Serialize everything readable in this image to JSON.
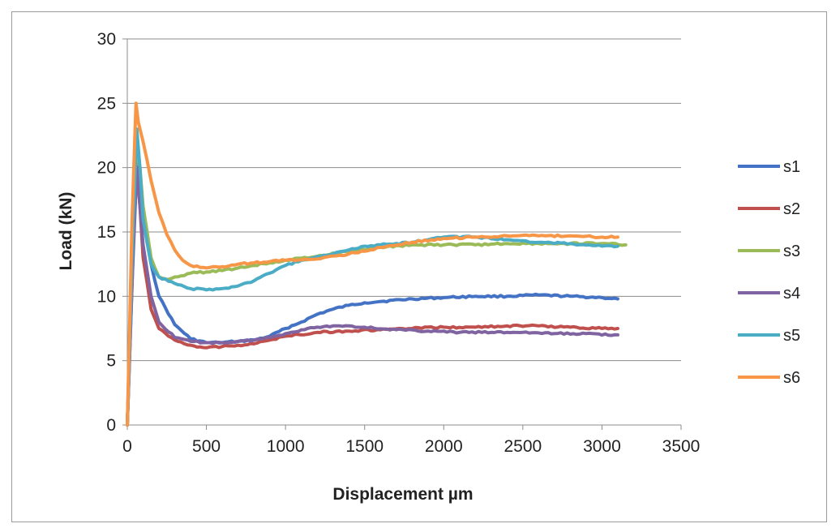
{
  "chart_data": {
    "type": "line",
    "title": "",
    "xlabel": "Displacement µm",
    "ylabel": "Load (kN)",
    "xlim": [
      0,
      3500
    ],
    "ylim": [
      0,
      30
    ],
    "xticks": [
      0,
      500,
      1000,
      1500,
      2000,
      2500,
      3000,
      3500
    ],
    "yticks": [
      0,
      5,
      10,
      15,
      20,
      25,
      30
    ],
    "grid": "horizontal",
    "legend_position": "right",
    "series": [
      {
        "name": "s1",
        "color": "#4472c4",
        "x": [
          0,
          30,
          60,
          80,
          100,
          150,
          200,
          300,
          400,
          500,
          600,
          700,
          800,
          900,
          1000,
          1100,
          1200,
          1300,
          1400,
          1500,
          1600,
          1800,
          2000,
          2200,
          2400,
          2600,
          2800,
          3000,
          3100
        ],
        "y": [
          0,
          12,
          20,
          19,
          16,
          12.5,
          10,
          7.8,
          6.7,
          6.4,
          6.4,
          6.5,
          6.6,
          6.9,
          7.5,
          8.0,
          8.6,
          9.0,
          9.3,
          9.5,
          9.6,
          9.8,
          9.9,
          10.0,
          10.0,
          10.1,
          10.0,
          9.9,
          9.8
        ]
      },
      {
        "name": "s2",
        "color": "#c0504d",
        "x": [
          0,
          30,
          55,
          80,
          100,
          150,
          200,
          300,
          400,
          500,
          600,
          700,
          800,
          900,
          1000,
          1200,
          1400,
          1600,
          1800,
          2000,
          2200,
          2400,
          2600,
          2800,
          3000,
          3100
        ],
        "y": [
          0,
          11,
          21,
          17,
          13,
          9,
          7.5,
          6.6,
          6.2,
          6.0,
          6.1,
          6.2,
          6.3,
          6.6,
          6.9,
          7.2,
          7.3,
          7.4,
          7.5,
          7.6,
          7.6,
          7.7,
          7.7,
          7.6,
          7.5,
          7.5
        ]
      },
      {
        "name": "s3",
        "color": "#9bbb59",
        "x": [
          0,
          30,
          60,
          80,
          100,
          150,
          200,
          250,
          300,
          400,
          500,
          600,
          700,
          800,
          900,
          1000,
          1200,
          1400,
          1600,
          1800,
          2000,
          2200,
          2400,
          2600,
          2800,
          3000,
          3150
        ],
        "y": [
          0,
          12,
          22,
          20,
          17,
          13,
          11.5,
          11.3,
          11.5,
          11.8,
          11.9,
          12.0,
          12.2,
          12.4,
          12.6,
          12.8,
          13.1,
          13.5,
          13.8,
          14.0,
          14.0,
          14.0,
          14.1,
          14.1,
          14.1,
          14.1,
          14.0
        ]
      },
      {
        "name": "s4",
        "color": "#8064a2",
        "x": [
          0,
          30,
          60,
          80,
          100,
          150,
          200,
          300,
          400,
          500,
          600,
          700,
          800,
          900,
          1000,
          1100,
          1200,
          1300,
          1400,
          1500,
          1700,
          1900,
          2100,
          2300,
          2500,
          2700,
          2900,
          3100
        ],
        "y": [
          0,
          11,
          20,
          17,
          14,
          10,
          8,
          6.8,
          6.5,
          6.4,
          6.4,
          6.5,
          6.6,
          6.8,
          7.1,
          7.4,
          7.6,
          7.7,
          7.7,
          7.6,
          7.4,
          7.3,
          7.2,
          7.2,
          7.2,
          7.1,
          7.1,
          7.0
        ]
      },
      {
        "name": "s5",
        "color": "#4bacc6",
        "x": [
          0,
          30,
          60,
          80,
          100,
          150,
          200,
          300,
          400,
          500,
          600,
          700,
          800,
          900,
          1000,
          1100,
          1200,
          1300,
          1400,
          1500,
          1600,
          1800,
          2000,
          2200,
          2400,
          2600,
          2800,
          3000,
          3100
        ],
        "y": [
          0,
          13,
          23,
          20,
          16,
          12.5,
          11.5,
          11.0,
          10.6,
          10.5,
          10.6,
          10.8,
          11.2,
          11.8,
          12.4,
          12.8,
          13.1,
          13.3,
          13.6,
          13.9,
          14.0,
          14.2,
          14.6,
          14.6,
          14.4,
          14.2,
          14.1,
          13.9,
          13.9
        ]
      },
      {
        "name": "s6",
        "color": "#f79646",
        "x": [
          0,
          30,
          55,
          70,
          100,
          150,
          200,
          250,
          300,
          350,
          400,
          500,
          600,
          700,
          800,
          900,
          1000,
          1200,
          1400,
          1600,
          1800,
          2000,
          2200,
          2400,
          2600,
          2800,
          3000,
          3100
        ],
        "y": [
          0,
          16,
          25,
          23.5,
          22,
          19,
          16.5,
          14.8,
          13.6,
          12.8,
          12.4,
          12.2,
          12.3,
          12.5,
          12.6,
          12.7,
          12.8,
          12.9,
          13.3,
          13.8,
          14.2,
          14.5,
          14.6,
          14.7,
          14.7,
          14.7,
          14.6,
          14.6
        ]
      }
    ]
  }
}
